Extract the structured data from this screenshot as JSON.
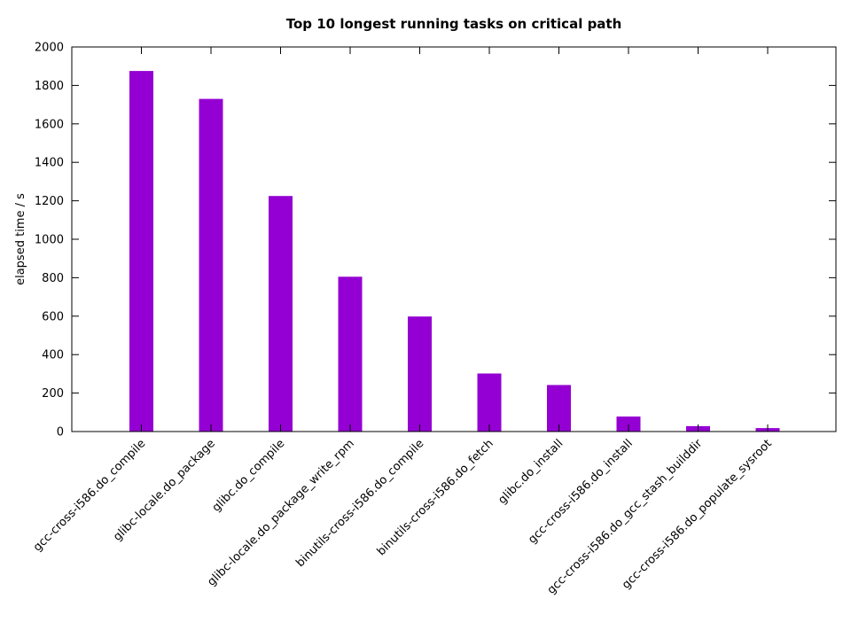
{
  "chart_data": {
    "type": "bar",
    "title": "Top 10 longest running tasks on critical path",
    "xlabel": "",
    "ylabel": "elapsed time / s",
    "ylim": [
      0,
      2000
    ],
    "yticks": [
      0,
      200,
      400,
      600,
      800,
      1000,
      1200,
      1400,
      1600,
      1800,
      2000
    ],
    "categories": [
      "gcc-cross-i586.do_compile",
      "glibc-locale.do_package",
      "glibc.do_compile",
      "glibc-locale.do_package_write_rpm",
      "binutils-cross-i586.do_compile",
      "binutils-cross-i586.do_fetch",
      "glibc.do_install",
      "gcc-cross-i586.do_install",
      "gcc-cross-i586.do_gcc_stash_builddir",
      "gcc-cross-i586.do_populate_sysroot"
    ],
    "values": [
      1875,
      1730,
      1225,
      805,
      598,
      302,
      242,
      78,
      28,
      18
    ],
    "bar_color": "#9400d3",
    "grid": false,
    "legend": "none"
  }
}
